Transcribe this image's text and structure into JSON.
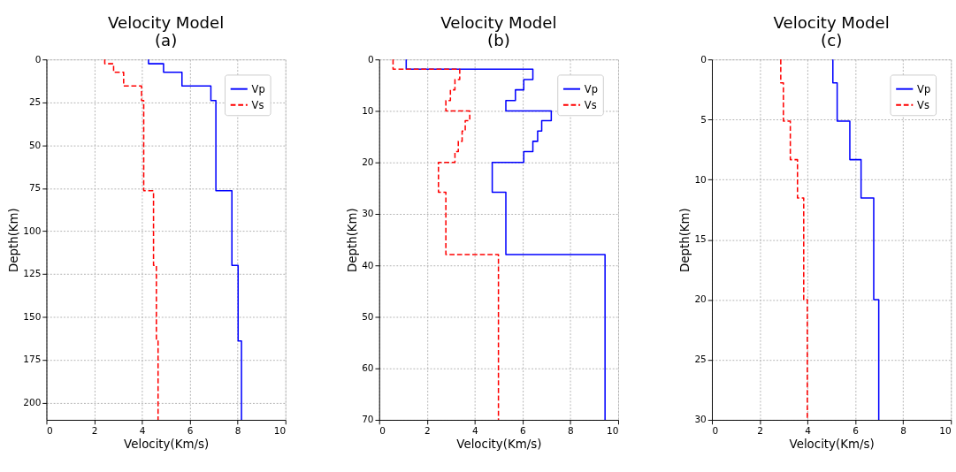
{
  "chart_data": [
    {
      "type": "line",
      "title": "Velocity Model",
      "subtitle": "(a)",
      "xlabel": "Velocity(Km/s)",
      "ylabel": "Depth(Km)",
      "xlim": [
        0,
        10
      ],
      "xticks": [
        0,
        2,
        4,
        6,
        8,
        10
      ],
      "ylim": [
        210,
        0
      ],
      "yticks": [
        0,
        25,
        50,
        75,
        100,
        125,
        150,
        175,
        200
      ],
      "grid": true,
      "legend": "top right",
      "marker": "none",
      "series": [
        {
          "name": "Vp",
          "color": "#0000ff",
          "line_style": "solid",
          "x": [
            4.27,
            4.27,
            4.9,
            4.9,
            5.67,
            5.67,
            6.88,
            6.88,
            7.09,
            7.09,
            7.76,
            7.76,
            8.02,
            8.02,
            8.16,
            8.16
          ],
          "values": [
            0,
            2.5,
            2.5,
            7.5,
            7.5,
            15.5,
            15.5,
            24,
            24,
            76.5,
            76.5,
            120,
            120,
            164,
            164,
            210
          ]
        },
        {
          "name": "Vs",
          "color": "#ff0000",
          "line_style": "dashed",
          "x": [
            2.44,
            2.44,
            2.81,
            2.81,
            3.23,
            3.23,
            3.98,
            3.98,
            4.07,
            4.07,
            4.48,
            4.48,
            4.6,
            4.6,
            4.67,
            4.67
          ],
          "values": [
            0,
            2.5,
            2.5,
            7.5,
            7.5,
            15.5,
            15.5,
            24,
            24,
            76.5,
            76.5,
            120,
            120,
            164,
            164,
            210
          ]
        }
      ]
    },
    {
      "type": "line",
      "title": "Velocity Model",
      "subtitle": "(b)",
      "xlabel": "Velocity(Km/s)",
      "ylabel": "Depth(Km)",
      "xlim": [
        0,
        10
      ],
      "xticks": [
        0,
        2,
        4,
        6,
        8,
        10
      ],
      "ylim": [
        70,
        0
      ],
      "yticks": [
        0,
        10,
        20,
        30,
        40,
        50,
        60,
        70
      ],
      "grid": true,
      "legend": "top right",
      "marker": "none",
      "series": [
        {
          "name": "Vp",
          "color": "#0000ff",
          "line_style": "solid",
          "x": [
            1.13,
            1.13,
            6.43,
            6.43,
            6.05,
            6.05,
            5.7,
            5.7,
            5.3,
            5.3,
            7.2,
            7.2,
            6.8,
            6.8,
            6.63,
            6.63,
            6.43,
            6.43,
            6.05,
            6.05,
            4.73,
            4.73,
            5.3,
            5.3,
            9.45,
            9.45
          ],
          "values": [
            0,
            1.9,
            1.9,
            3.9,
            3.9,
            5.9,
            5.9,
            8,
            8,
            10,
            10,
            11.9,
            11.9,
            13.9,
            13.9,
            15.9,
            15.9,
            17.9,
            17.9,
            20,
            20,
            25.8,
            25.8,
            37.9,
            37.9,
            70
          ]
        },
        {
          "name": "Vs",
          "color": "#ff0000",
          "line_style": "dashed",
          "x": [
            0.58,
            0.58,
            3.37,
            3.37,
            3.17,
            3.17,
            2.98,
            2.98,
            2.79,
            2.79,
            3.79,
            3.79,
            3.6,
            3.6,
            3.47,
            3.47,
            3.31,
            3.31,
            3.17,
            3.17,
            2.48,
            2.48,
            2.79,
            2.79,
            4.99,
            4.99
          ],
          "values": [
            0,
            1.9,
            1.9,
            3.9,
            3.9,
            5.9,
            5.9,
            8,
            8,
            10,
            10,
            11.9,
            11.9,
            13.9,
            13.9,
            15.9,
            15.9,
            17.9,
            17.9,
            20,
            20,
            25.8,
            25.8,
            37.9,
            37.9,
            70
          ]
        }
      ]
    },
    {
      "type": "line",
      "title": "Velocity Model",
      "subtitle": "(c)",
      "xlabel": "Velocity(Km/s)",
      "ylabel": "Depth(Km)",
      "xlim": [
        0,
        10
      ],
      "xticks": [
        0,
        2,
        4,
        6,
        8,
        10
      ],
      "ylim": [
        30,
        0
      ],
      "yticks": [
        0,
        5,
        10,
        15,
        20,
        25,
        30
      ],
      "grid": true,
      "legend": "top right",
      "marker": "none",
      "series": [
        {
          "name": "Vp",
          "color": "#0000ff",
          "line_style": "solid",
          "x": [
            5.06,
            5.06,
            5.24,
            5.24,
            5.77,
            5.77,
            6.24,
            6.24,
            6.77,
            6.77,
            6.98,
            6.98
          ],
          "values": [
            0,
            1.95,
            1.95,
            5.13,
            5.13,
            8.34,
            8.34,
            11.53,
            11.53,
            20,
            20,
            30
          ]
        },
        {
          "name": "Vs",
          "color": "#ff0000",
          "line_style": "dashed",
          "x": [
            2.88,
            2.88,
            2.99,
            2.99,
            3.28,
            3.28,
            3.58,
            3.58,
            3.84,
            3.84,
            3.99,
            3.99
          ],
          "values": [
            0,
            1.95,
            1.95,
            5.13,
            5.13,
            8.34,
            8.34,
            11.53,
            11.53,
            20,
            20,
            30
          ]
        }
      ]
    }
  ]
}
